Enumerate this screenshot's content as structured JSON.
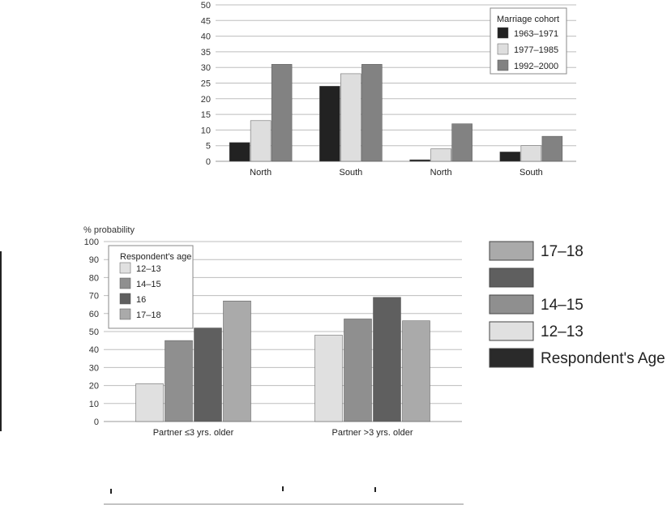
{
  "chart_data": [
    {
      "type": "bar",
      "title": "",
      "xlabel": "",
      "ylabel": "",
      "ylim": [
        0,
        50
      ],
      "yticks": [
        0,
        5,
        10,
        15,
        20,
        25,
        30,
        35,
        40,
        45,
        50
      ],
      "categories": [
        "North",
        "South",
        "North",
        "South"
      ],
      "legend_title": "Marriage cohort",
      "legend_position": "top-right",
      "grid": true,
      "series": [
        {
          "name": "1963–1971",
          "color": "#222222",
          "values": [
            6,
            24,
            0.5,
            3
          ]
        },
        {
          "name": "1977–1985",
          "color": "#dedede",
          "values": [
            13,
            28,
            4,
            5
          ]
        },
        {
          "name": "1992–2000",
          "color": "#828282",
          "values": [
            31,
            31,
            12,
            8
          ]
        }
      ]
    },
    {
      "type": "bar",
      "title": "",
      "xlabel": "",
      "ylabel": "% probability",
      "ylim": [
        0,
        100
      ],
      "yticks": [
        0,
        10,
        20,
        30,
        40,
        50,
        60,
        70,
        80,
        90,
        100
      ],
      "categories": [
        "Partner ≤3 yrs. older",
        "Partner >3 yrs. older"
      ],
      "legend_title": "Respondent's age",
      "legend_position": "top-left",
      "grid": true,
      "series": [
        {
          "name": "12–13",
          "color": "#e0e0e0",
          "values": [
            21,
            48
          ]
        },
        {
          "name": "14–15",
          "color": "#8f8f8f",
          "values": [
            45,
            57
          ]
        },
        {
          "name": "16",
          "color": "#5f5f5f",
          "values": [
            52,
            69
          ]
        },
        {
          "name": "17–18",
          "color": "#aaaaaa",
          "values": [
            67,
            56
          ]
        }
      ]
    }
  ],
  "side_legend": {
    "items": [
      {
        "label": "17–18",
        "color": "#aaaaaa"
      },
      {
        "label": "",
        "color": "#5f5f5f"
      },
      {
        "label": "14–15",
        "color": "#8f8f8f"
      },
      {
        "label": "12–13",
        "color": "#e0e0e0"
      },
      {
        "label": "Respondent's Age",
        "color": "#2a2a2a"
      }
    ]
  }
}
